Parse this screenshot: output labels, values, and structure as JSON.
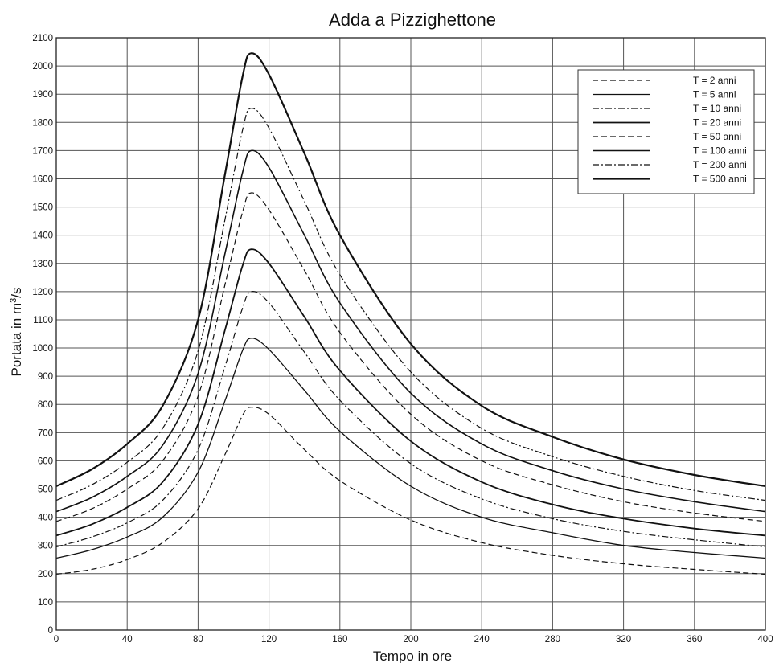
{
  "chart_data": {
    "type": "line",
    "title": "Adda a Pizzighettone",
    "xlabel": "Tempo in ore",
    "ylabel": {
      "prefix": "Portata in m",
      "sup": "3",
      "suffix": "/s"
    },
    "xlim": [
      0,
      400
    ],
    "ylim": [
      0,
      2100
    ],
    "xticks": [
      0,
      40,
      80,
      120,
      160,
      200,
      240,
      280,
      320,
      360,
      400
    ],
    "yticks": [
      0,
      100,
      200,
      300,
      400,
      500,
      600,
      700,
      800,
      900,
      1000,
      1100,
      1200,
      1300,
      1400,
      1500,
      1600,
      1700,
      1800,
      1900,
      2000,
      2100
    ],
    "grid": true,
    "legend_position": "top-right",
    "x": [
      0,
      20,
      40,
      60,
      80,
      95,
      105,
      110,
      120,
      140,
      160,
      200,
      240,
      280,
      320,
      360,
      400
    ],
    "series": [
      {
        "name": "T = 2 anni",
        "dash": "dash",
        "width": 1.2,
        "values": [
          198,
          215,
          250,
          310,
          430,
          620,
          760,
          790,
          765,
          640,
          530,
          390,
          310,
          265,
          235,
          215,
          198
        ]
      },
      {
        "name": "T = 5 anni",
        "dash": "solid",
        "width": 1.3,
        "values": [
          255,
          285,
          330,
          400,
          560,
          810,
          990,
          1035,
          995,
          850,
          705,
          510,
          400,
          345,
          300,
          275,
          255
        ]
      },
      {
        "name": "T = 10 anni",
        "dash": "dashdot",
        "width": 1.2,
        "values": [
          295,
          330,
          380,
          460,
          640,
          930,
          1140,
          1200,
          1160,
          985,
          815,
          590,
          465,
          395,
          350,
          320,
          295
        ]
      },
      {
        "name": "T = 20 anni",
        "dash": "solid",
        "width": 1.8,
        "values": [
          335,
          375,
          435,
          525,
          730,
          1060,
          1290,
          1350,
          1300,
          1110,
          920,
          670,
          525,
          445,
          395,
          360,
          335
        ]
      },
      {
        "name": "T = 50 anni",
        "dash": "dash",
        "width": 1.2,
        "values": [
          385,
          430,
          500,
          600,
          830,
          1220,
          1480,
          1550,
          1490,
          1275,
          1055,
          765,
          600,
          515,
          455,
          415,
          385
        ]
      },
      {
        "name": "T = 100 anni",
        "dash": "solid",
        "width": 1.6,
        "values": [
          420,
          470,
          545,
          655,
          910,
          1330,
          1620,
          1700,
          1640,
          1400,
          1160,
          840,
          660,
          565,
          500,
          455,
          420
        ]
      },
      {
        "name": "T = 200 anni",
        "dash": "dashdot",
        "width": 1.2,
        "values": [
          460,
          515,
          595,
          715,
          990,
          1450,
          1770,
          1850,
          1780,
          1520,
          1260,
          915,
          715,
          615,
          545,
          495,
          460
        ]
      },
      {
        "name": "T = 500 anni",
        "dash": "solid",
        "width": 2.2,
        "values": [
          510,
          570,
          660,
          795,
          1100,
          1610,
          1960,
          2045,
          1970,
          1690,
          1400,
          1015,
          795,
          685,
          605,
          550,
          510
        ]
      }
    ]
  }
}
